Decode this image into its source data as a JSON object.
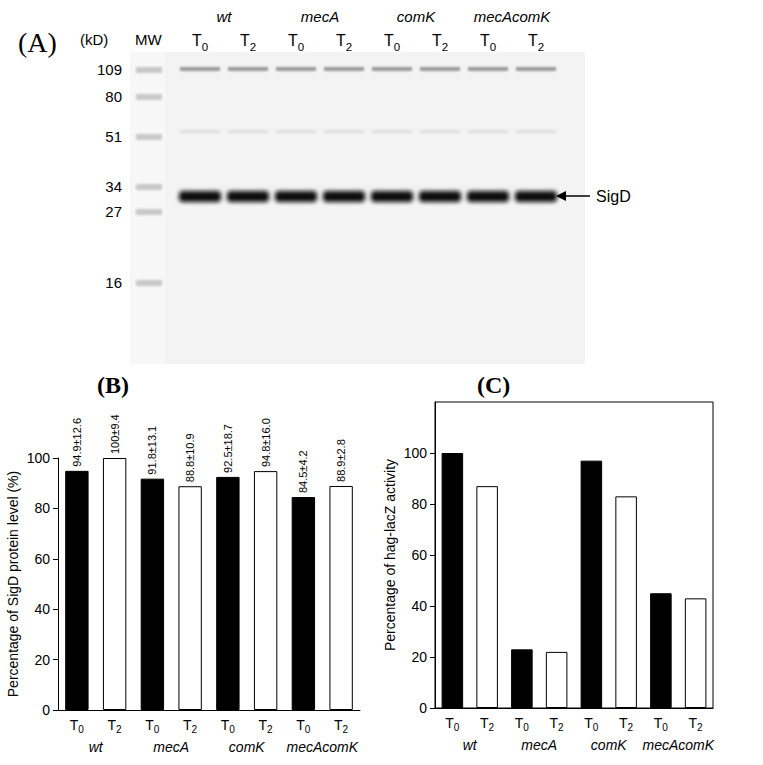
{
  "panel_a": {
    "label": "(A)",
    "unit": "(kD)",
    "marker_lane": "MW",
    "markers": [
      109,
      80,
      51,
      34,
      27,
      16
    ],
    "strains": [
      "wt",
      "mecA",
      "comK",
      "mecAcomK"
    ],
    "times": [
      "T0",
      "T2"
    ],
    "band": "SigD"
  },
  "chart_data": [
    {
      "type": "bar",
      "title": "(B)",
      "y_label": "Percentage of SigD protein level (%)",
      "categories": [
        "T0",
        "T2",
        "T0",
        "T2",
        "T0",
        "T2",
        "T0",
        "T2"
      ],
      "groups": [
        "wt",
        "mecA",
        "comK",
        "mecAcomK"
      ],
      "values": [
        94.9,
        100,
        91.8,
        88.8,
        92.5,
        94.8,
        84.5,
        88.9
      ],
      "value_labels": [
        "94.9±12.6",
        "100±9.4",
        "91.8±13.1",
        "88.8±10.9",
        "92.5±18.7",
        "94.8±16.0",
        "84.5±4.2",
        "88.9±2.8"
      ],
      "colors": [
        "#000000",
        "#ffffff",
        "#000000",
        "#ffffff",
        "#000000",
        "#ffffff",
        "#000000",
        "#ffffff"
      ],
      "ylim": [
        0,
        100
      ],
      "yticks": [
        0,
        20,
        40,
        60,
        80,
        100
      ],
      "data_labels": true
    },
    {
      "type": "bar",
      "title": "(C)",
      "y_label": "Percentage of hag-lacZ activity",
      "categories": [
        "T0",
        "T2",
        "T0",
        "T2",
        "T0",
        "T2",
        "T0",
        "T2"
      ],
      "groups": [
        "wt",
        "mecA",
        "comK",
        "mecAcomK"
      ],
      "values": [
        100,
        87,
        23,
        22,
        97,
        83,
        45,
        43
      ],
      "colors": [
        "#000000",
        "#ffffff",
        "#000000",
        "#ffffff",
        "#000000",
        "#ffffff",
        "#000000",
        "#ffffff"
      ],
      "ylim": [
        0,
        120
      ],
      "yticks": [
        0,
        20,
        40,
        60,
        80,
        100
      ]
    }
  ]
}
